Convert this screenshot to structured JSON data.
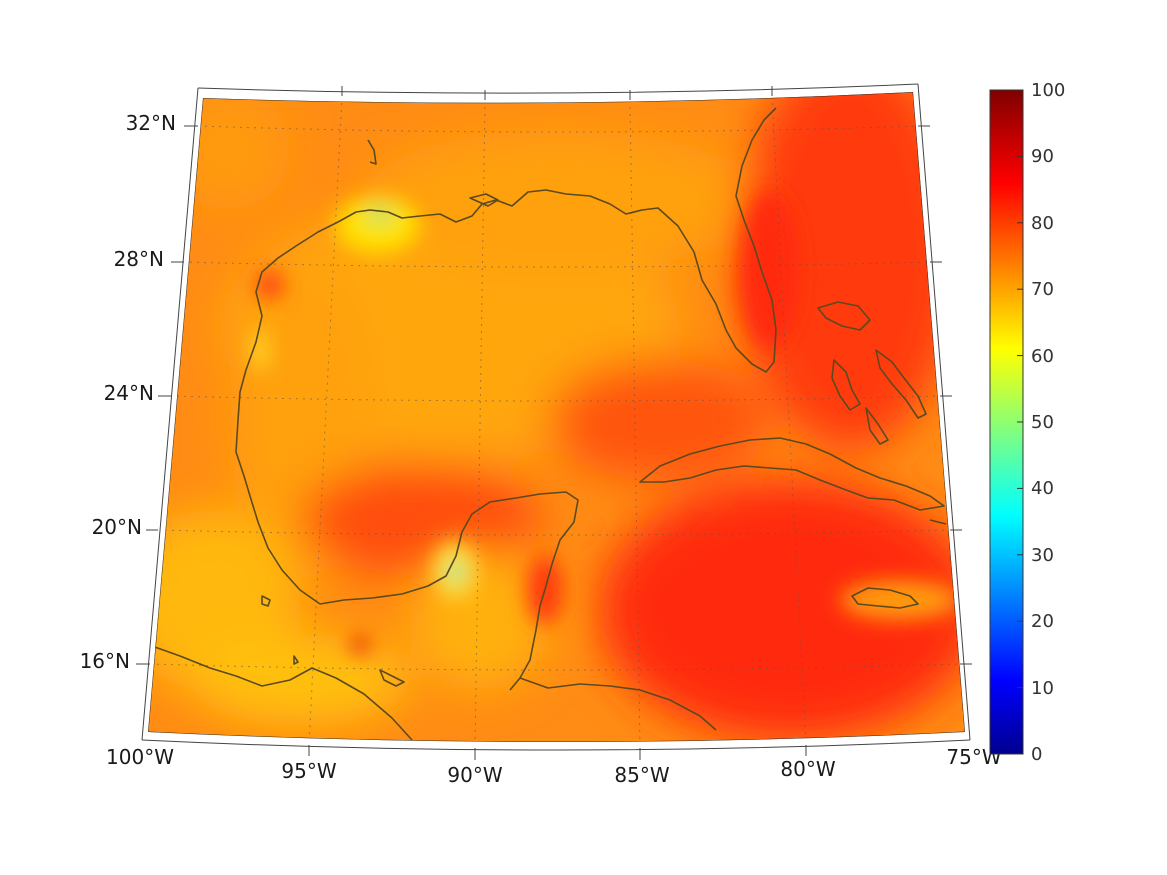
{
  "map": {
    "lat_labels": [
      "32°N",
      "28°N",
      "24°N",
      "20°N",
      "16°N"
    ],
    "lon_labels": [
      "100°W",
      "95°W",
      "90°W",
      "85°W",
      "80°W",
      "75°W"
    ],
    "region": {
      "lon_min": -100,
      "lon_max": -75,
      "lat_min": 14,
      "lat_max": 33
    },
    "colormap": "jet",
    "field_colors": {
      "low_orange": "#ffa500",
      "mid_orange": "#ff7a10",
      "red": "#ff3010",
      "yellow": "#ffe000",
      "green": "#a0e060",
      "coast": "#5b4a1f"
    }
  },
  "colorbar": {
    "ticks": [
      "100",
      "90",
      "80",
      "70",
      "60",
      "50",
      "40",
      "30",
      "20",
      "10",
      "0"
    ],
    "range": [
      0,
      100
    ]
  }
}
